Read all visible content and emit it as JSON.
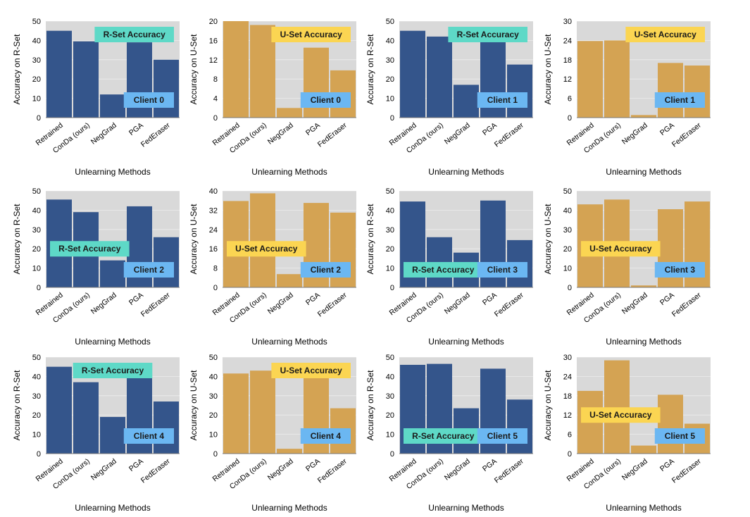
{
  "figure": {
    "xlabel": "Unlearning Methods",
    "categories": [
      "Retrained",
      "ConDa (ours)",
      "NegGrad",
      "PGA",
      "FedEraser"
    ]
  },
  "colors": {
    "r_bar": "#34558b",
    "u_bar": "#d4a353",
    "plot_bg": "#d9d9d9",
    "r_badge": "#5ed9c7",
    "u_badge": "#fbd552",
    "client_badge": "#6bb7f2"
  },
  "chart_data": [
    {
      "type": "bar",
      "title": "",
      "set_label": "R-Set Accuracy",
      "client_label": "Client 0",
      "ylabel": "Accuracy on R-Set",
      "xlabel": "Unlearning Methods",
      "categories": [
        "Retrained",
        "ConDa (ours)",
        "NegGrad",
        "PGA",
        "FedEraser"
      ],
      "values": [
        45,
        39.5,
        12,
        39,
        30
      ],
      "ylim": [
        0,
        50
      ],
      "yticks": [
        0,
        10,
        20,
        30,
        40,
        50
      ],
      "set_pos": "top-right",
      "client_pos": "bottom-right"
    },
    {
      "type": "bar",
      "title": "",
      "set_label": "U-Set Accuracy",
      "client_label": "Client 0",
      "ylabel": "Accuracy on U-Set",
      "xlabel": "Unlearning Methods",
      "categories": [
        "Retrained",
        "ConDa (ours)",
        "NegGrad",
        "PGA",
        "FedEraser"
      ],
      "values": [
        20,
        19.2,
        2,
        14.5,
        9.8
      ],
      "ylim": [
        0,
        20
      ],
      "yticks": [
        0,
        4,
        8,
        12,
        16,
        20
      ],
      "set_pos": "top-right",
      "client_pos": "bottom-right"
    },
    {
      "type": "bar",
      "title": "",
      "set_label": "R-Set Accuracy",
      "client_label": "Client 1",
      "ylabel": "Accuracy on R-Set",
      "xlabel": "Unlearning Methods",
      "categories": [
        "Retrained",
        "ConDa (ours)",
        "NegGrad",
        "PGA",
        "FedEraser"
      ],
      "values": [
        45,
        42,
        17,
        41.5,
        27.5
      ],
      "ylim": [
        0,
        50
      ],
      "yticks": [
        0,
        10,
        20,
        30,
        40,
        50
      ],
      "set_pos": "top-right",
      "client_pos": "bottom-right"
    },
    {
      "type": "bar",
      "title": "",
      "set_label": "U-Set Accuracy",
      "client_label": "Client 1",
      "ylabel": "Accuracy on U-Set",
      "xlabel": "Unlearning Methods",
      "categories": [
        "Retrained",
        "ConDa (ours)",
        "NegGrad",
        "PGA",
        "FedEraser"
      ],
      "values": [
        23.8,
        24,
        0.8,
        17,
        16.2
      ],
      "ylim": [
        0,
        30
      ],
      "yticks": [
        0,
        6,
        12,
        18,
        24,
        30
      ],
      "set_pos": "top-right",
      "client_pos": "bottom-right"
    },
    {
      "type": "bar",
      "title": "",
      "set_label": "R-Set Accuracy",
      "client_label": "Client 2",
      "ylabel": "Accuracy on R-Set",
      "xlabel": "Unlearning Methods",
      "categories": [
        "Retrained",
        "ConDa (ours)",
        "NegGrad",
        "PGA",
        "FedEraser"
      ],
      "values": [
        45.5,
        39,
        14,
        42,
        26
      ],
      "ylim": [
        0,
        50
      ],
      "yticks": [
        0,
        10,
        20,
        30,
        40,
        50
      ],
      "set_pos": "middle-left",
      "client_pos": "bottom-right"
    },
    {
      "type": "bar",
      "title": "",
      "set_label": "U-Set Accuracy",
      "client_label": "Client 2",
      "ylabel": "Accuracy on U-Set",
      "xlabel": "Unlearning Methods",
      "categories": [
        "Retrained",
        "ConDa (ours)",
        "NegGrad",
        "PGA",
        "FedEraser"
      ],
      "values": [
        35.8,
        39,
        5.5,
        35,
        31
      ],
      "ylim": [
        0,
        40
      ],
      "yticks": [
        0,
        8,
        16,
        24,
        32,
        40
      ],
      "set_pos": "middle-left",
      "client_pos": "bottom-right"
    },
    {
      "type": "bar",
      "title": "",
      "set_label": "R-Set Accuracy",
      "client_label": "Client 3",
      "ylabel": "Accuracy on R-Set",
      "xlabel": "Unlearning Methods",
      "categories": [
        "Retrained",
        "ConDa (ours)",
        "NegGrad",
        "PGA",
        "FedEraser"
      ],
      "values": [
        44.5,
        26,
        18,
        45,
        24.5
      ],
      "ylim": [
        0,
        50
      ],
      "yticks": [
        0,
        10,
        20,
        30,
        40,
        50
      ],
      "set_pos": "bottom-left",
      "client_pos": "bottom-right"
    },
    {
      "type": "bar",
      "title": "",
      "set_label": "U-Set Accuracy",
      "client_label": "Client 3",
      "ylabel": "Accuracy on U-Set",
      "xlabel": "Unlearning Methods",
      "categories": [
        "Retrained",
        "ConDa (ours)",
        "NegGrad",
        "PGA",
        "FedEraser"
      ],
      "values": [
        43,
        45.5,
        1,
        40.5,
        44.5
      ],
      "ylim": [
        0,
        50
      ],
      "yticks": [
        0,
        10,
        20,
        30,
        40,
        50
      ],
      "set_pos": "middle-left",
      "client_pos": "bottom-right"
    },
    {
      "type": "bar",
      "title": "",
      "set_label": "R-Set Accuracy",
      "client_label": "Client 4",
      "ylabel": "Accuracy on R-Set",
      "xlabel": "Unlearning Methods",
      "categories": [
        "Retrained",
        "ConDa (ours)",
        "NegGrad",
        "PGA",
        "FedEraser"
      ],
      "values": [
        45,
        37,
        19,
        41,
        27
      ],
      "ylim": [
        0,
        50
      ],
      "yticks": [
        0,
        10,
        20,
        30,
        40,
        50
      ],
      "set_pos": "top-center",
      "client_pos": "bottom-right"
    },
    {
      "type": "bar",
      "title": "",
      "set_label": "U-Set Accuracy",
      "client_label": "Client 4",
      "ylabel": "Accuracy on U-Set",
      "xlabel": "Unlearning Methods",
      "categories": [
        "Retrained",
        "ConDa (ours)",
        "NegGrad",
        "PGA",
        "FedEraser"
      ],
      "values": [
        41.5,
        43,
        2.5,
        40,
        23.5
      ],
      "ylim": [
        0,
        50
      ],
      "yticks": [
        0,
        10,
        20,
        30,
        40,
        50
      ],
      "set_pos": "top-right",
      "client_pos": "bottom-right"
    },
    {
      "type": "bar",
      "title": "",
      "set_label": "R-Set Accuracy",
      "client_label": "Client 5",
      "ylabel": "Accuracy on R-Set",
      "xlabel": "Unlearning Methods",
      "categories": [
        "Retrained",
        "ConDa (ours)",
        "NegGrad",
        "PGA",
        "FedEraser"
      ],
      "values": [
        46,
        46.5,
        23.5,
        44,
        28
      ],
      "ylim": [
        0,
        50
      ],
      "yticks": [
        0,
        10,
        20,
        30,
        40,
        50
      ],
      "set_pos": "bottom-left",
      "client_pos": "bottom-right"
    },
    {
      "type": "bar",
      "title": "",
      "set_label": "U-Set Accuracy",
      "client_label": "Client 5",
      "ylabel": "Accuracy on U-Set",
      "xlabel": "Unlearning Methods",
      "categories": [
        "Retrained",
        "ConDa (ours)",
        "NegGrad",
        "PGA",
        "FedEraser"
      ],
      "values": [
        19.5,
        29,
        2.5,
        18.3,
        9.3
      ],
      "ylim": [
        0,
        30
      ],
      "yticks": [
        0,
        6,
        12,
        18,
        24,
        30
      ],
      "set_pos": "middle-left",
      "client_pos": "bottom-right"
    }
  ]
}
